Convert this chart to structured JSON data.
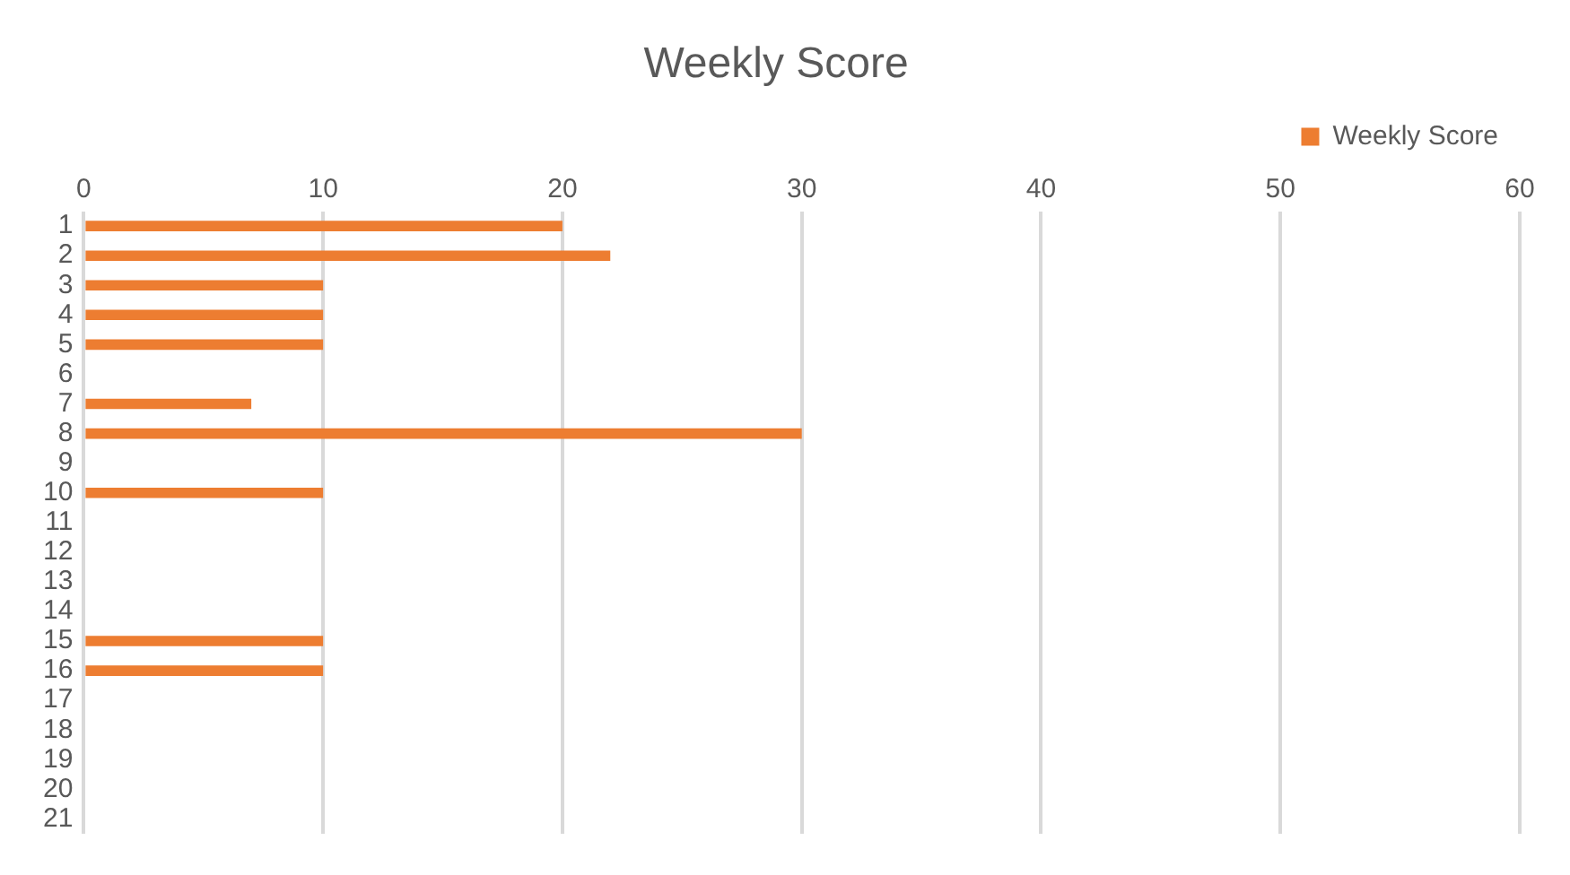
{
  "chart_data": {
    "type": "bar",
    "orientation": "horizontal",
    "title": "Weekly Score",
    "categories": [
      "1",
      "2",
      "3",
      "4",
      "5",
      "6",
      "7",
      "8",
      "9",
      "10",
      "11",
      "12",
      "13",
      "14",
      "15",
      "16",
      "17",
      "18",
      "19",
      "20",
      "21"
    ],
    "series": [
      {
        "name": "Weekly Score",
        "color": "#ed7d31",
        "values": [
          20,
          22,
          10,
          10,
          10,
          null,
          7,
          30,
          null,
          10,
          null,
          null,
          null,
          null,
          10,
          10,
          null,
          null,
          null,
          null,
          null
        ]
      }
    ],
    "xlim": [
      0,
      60
    ],
    "xticks": [
      0,
      10,
      20,
      30,
      40,
      50,
      60
    ],
    "grid": "x",
    "legend": "top right"
  }
}
